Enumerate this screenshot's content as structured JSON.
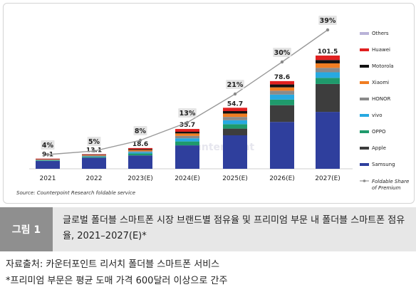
{
  "caption": {
    "figure_label": "그림 1",
    "text": "글로벌 폴더블 스마트폰 시장 브랜드별 점유율 및 프리미엄 부문 내 폴더블 스마트폰 점유율, 2021–2027(E)*"
  },
  "notes": {
    "source": "자료출처: 카운터포인트 리서치 폴더블 스마트폰 서비스",
    "premium": "*프리미엄 부문은 평균 도매 가격 600달러 이상으로 간주"
  },
  "chart_data": {
    "type": "bar",
    "stacked": true,
    "categories": [
      "2021",
      "2022",
      "2023(E)",
      "2024(E)",
      "2025(E)",
      "2026(E)",
      "2027(E)"
    ],
    "totals": [
      9.1,
      13.1,
      18.6,
      35.7,
      54.7,
      78.6,
      101.5
    ],
    "totals_labels": [
      "9.1",
      "13.1",
      "18.6",
      "35.7",
      "54.7",
      "78.6",
      "101.5"
    ],
    "ylim": [
      0,
      120
    ],
    "series": [
      {
        "name": "Samsung",
        "color": "#2f3f9d",
        "values": [
          7.0,
          10.0,
          12.0,
          21.0,
          30.0,
          42.0,
          51.0
        ]
      },
      {
        "name": "Apple",
        "color": "#3d3d3d",
        "values": [
          0,
          0,
          0,
          0,
          6.0,
          15.0,
          25.0
        ]
      },
      {
        "name": "OPPO",
        "color": "#1f9a6c",
        "values": [
          0.5,
          0.7,
          1.7,
          3.5,
          4.0,
          5.0,
          5.5
        ]
      },
      {
        "name": "vivo",
        "color": "#27a9e1",
        "values": [
          0.3,
          0.5,
          1.2,
          2.8,
          3.5,
          4.5,
          5.0
        ]
      },
      {
        "name": "HONOR",
        "color": "#8a8a8a",
        "values": [
          0.3,
          0.5,
          1.0,
          2.2,
          3.0,
          3.5,
          4.0
        ]
      },
      {
        "name": "Xiaomi",
        "color": "#f07d22",
        "values": [
          0.3,
          0.5,
          1.0,
          2.2,
          3.0,
          3.0,
          4.0
        ]
      },
      {
        "name": "Motorola",
        "color": "#111111",
        "values": [
          0.2,
          0.4,
          0.7,
          1.5,
          2.2,
          2.6,
          3.0
        ]
      },
      {
        "name": "Huawei",
        "color": "#e02020",
        "values": [
          0.5,
          0.5,
          1.0,
          2.5,
          3.0,
          3.0,
          4.0
        ]
      },
      {
        "name": "Others",
        "color": "#b9b3d8",
        "values": [
          0,
          0,
          0,
          0,
          0,
          0,
          0
        ]
      }
    ],
    "line": {
      "name": "Foldable Share of Premium",
      "color": "#9a9a9a",
      "values": [
        4,
        5,
        8,
        13,
        21,
        30,
        39
      ],
      "labels": [
        "4%",
        "5%",
        "8%",
        "13%",
        "21%",
        "30%",
        "39%"
      ],
      "scale_max": 42
    },
    "source": "Source: Counterpoint Research foldable service",
    "watermark": "Counterpoint"
  }
}
